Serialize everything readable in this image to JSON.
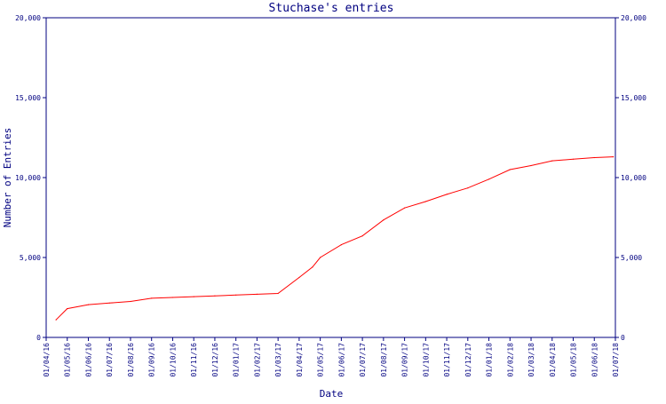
{
  "chart_data": {
    "type": "line",
    "title": "Stuchase's entries",
    "xlabel": "Date",
    "ylabel": "Number of Entries",
    "ylim": [
      0,
      20000
    ],
    "y_ticks": [
      {
        "value": 0,
        "label": "0"
      },
      {
        "value": 5000,
        "label": "5,000"
      },
      {
        "value": 10000,
        "label": "10,000"
      },
      {
        "value": 15000,
        "label": "15,000"
      },
      {
        "value": 20000,
        "label": "20,000"
      }
    ],
    "x_ticks": [
      "01/04/16",
      "01/05/16",
      "01/06/16",
      "01/07/16",
      "01/08/16",
      "01/09/16",
      "01/10/16",
      "01/11/16",
      "01/12/16",
      "01/01/17",
      "01/02/17",
      "01/03/17",
      "01/04/17",
      "01/05/17",
      "01/06/17",
      "01/07/17",
      "01/08/17",
      "01/09/17",
      "01/10/17",
      "01/11/17",
      "01/12/17",
      "01/01/18",
      "01/02/18",
      "01/03/18",
      "01/04/18",
      "01/05/18",
      "01/06/18",
      "01/07/18"
    ],
    "grid": false,
    "colors": {
      "line": "#ff0000",
      "axis": "#000080",
      "text": "#000080"
    },
    "series": [
      {
        "x": [
          "2016-04-15",
          "2016-05-01",
          "2016-06-01",
          "2016-07-01",
          "2016-08-01",
          "2016-09-01",
          "2016-10-01",
          "2016-11-01",
          "2016-12-01",
          "2017-01-01",
          "2017-02-01",
          "2017-03-01",
          "2017-04-01",
          "2017-04-20",
          "2017-05-01",
          "2017-06-01",
          "2017-07-01",
          "2017-08-01",
          "2017-09-01",
          "2017-10-01",
          "2017-11-01",
          "2017-12-01",
          "2018-01-01",
          "2018-02-01",
          "2018-03-01",
          "2018-04-01",
          "2018-05-01",
          "2018-06-01",
          "2018-06-28"
        ],
        "y": [
          1100,
          1800,
          2050,
          2150,
          2250,
          2450,
          2500,
          2550,
          2600,
          2650,
          2700,
          2750,
          3750,
          4400,
          5000,
          5800,
          6350,
          7350,
          8100,
          8500,
          8950,
          9350,
          9900,
          10500,
          10750,
          11050,
          11150,
          11250,
          11300
        ]
      }
    ]
  }
}
